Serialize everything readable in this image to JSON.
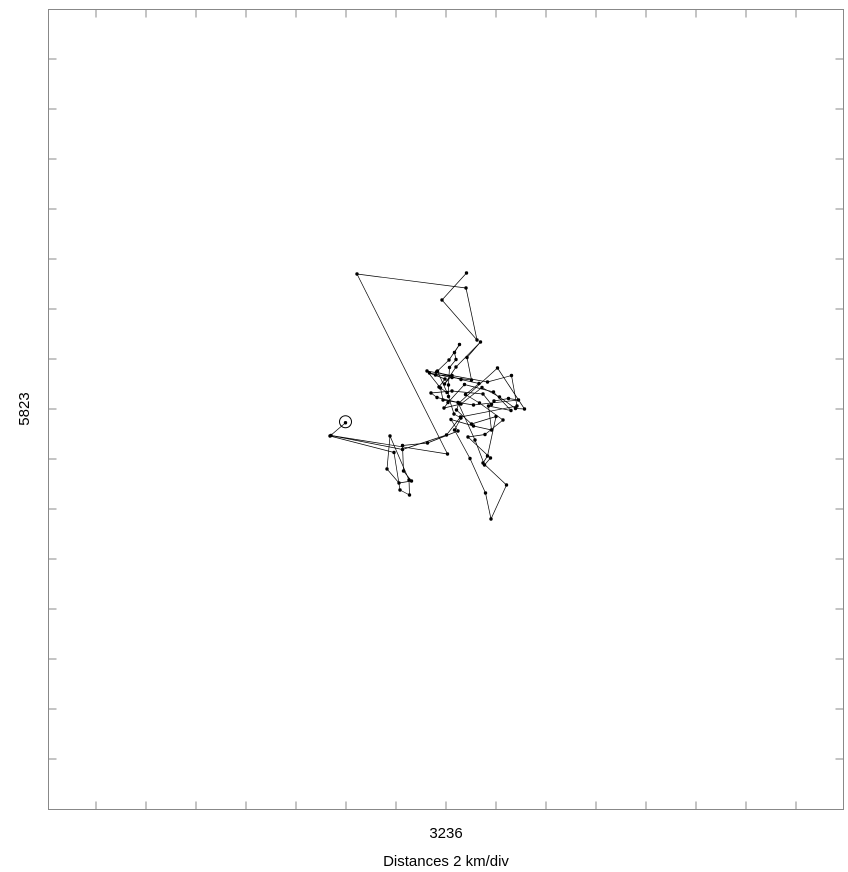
{
  "chart_data": {
    "type": "line",
    "x_center_label": "3236",
    "y_center_label": "5823",
    "xlabel": "Distances 2 km/div",
    "ylabel": "",
    "units": "km",
    "division_km": 2,
    "xlim": [
      -16,
      16
    ],
    "ylim": [
      -16,
      16
    ],
    "grid": false,
    "start_marker": "circle",
    "series": [
      {
        "values": [
          [
            -4.02,
            -0.55
          ],
          [
            -4.64,
            -1.08
          ],
          [
            -2.08,
            -1.74
          ],
          [
            -1.84,
            -3.24
          ],
          [
            -1.46,
            -3.44
          ],
          [
            -1.48,
            -2.84
          ],
          [
            -2.24,
            -1.08
          ],
          [
            -2.36,
            -2.4
          ],
          [
            -1.88,
            -2.96
          ],
          [
            -1.38,
            -2.88
          ],
          [
            -1.7,
            -2.48
          ],
          [
            -1.74,
            -1.46
          ],
          [
            -0.74,
            -1.36
          ],
          [
            0.48,
            -0.88
          ],
          [
            0.2,
            -0.42
          ],
          [
            1.1,
            -0.68
          ],
          [
            1.82,
            -0.84
          ],
          [
            1.7,
            0.12
          ],
          [
            2.6,
            -0.06
          ],
          [
            1.9,
            0.68
          ],
          [
            0.74,
            0.98
          ],
          [
            0.08,
            0.26
          ],
          [
            -0.08,
            0.04
          ],
          [
            0.6,
            0.2
          ],
          [
            1.44,
            0.86
          ],
          [
            2.14,
            0.48
          ],
          [
            2.78,
            0.02
          ],
          [
            3.14,
            0.0
          ],
          [
            2.06,
            1.64
          ],
          [
            0.52,
            0.24
          ],
          [
            0.42,
            -0.04
          ],
          [
            1.02,
            -0.6
          ],
          [
            2.0,
            -0.3
          ],
          [
            1.66,
            -1.88
          ],
          [
            1.48,
            -2.16
          ],
          [
            2.42,
            -3.04
          ],
          [
            1.8,
            -4.4
          ],
          [
            1.58,
            -3.36
          ],
          [
            0.96,
            -1.98
          ],
          [
            0.34,
            -0.84
          ],
          [
            0.6,
            -0.36
          ],
          [
            0.32,
            -0.2
          ],
          [
            0.1,
            0.5
          ],
          [
            0.1,
            0.96
          ],
          [
            0.14,
            1.66
          ],
          [
            0.4,
            1.98
          ],
          [
            0.34,
            2.26
          ],
          [
            0.54,
            2.58
          ],
          [
            0.12,
            1.96
          ],
          [
            -0.34,
            1.52
          ],
          [
            0.04,
            0.66
          ],
          [
            -0.28,
            0.88
          ],
          [
            -0.04,
            1.2
          ],
          [
            -0.66,
            1.44
          ],
          [
            0.24,
            1.26
          ],
          [
            1.02,
            1.16
          ],
          [
            0.84,
            2.06
          ],
          [
            1.38,
            2.68
          ],
          [
            0.4,
            1.68
          ],
          [
            -0.06,
            1.0
          ],
          [
            0.24,
            1.34
          ],
          [
            -0.42,
            1.36
          ],
          [
            -0.38,
            1.48
          ],
          [
            0.6,
            1.18
          ],
          [
            1.32,
            1.02
          ],
          [
            0.78,
            0.58
          ],
          [
            1.34,
            0.24
          ],
          [
            2.28,
            -0.44
          ],
          [
            1.56,
            -1.02
          ],
          [
            0.88,
            -1.12
          ],
          [
            1.78,
            -1.96
          ],
          [
            1.54,
            -2.24
          ],
          [
            1.16,
            -1.24
          ],
          [
            0.48,
            0.26
          ],
          [
            -0.36,
            0.46
          ],
          [
            -0.6,
            0.64
          ],
          [
            0.24,
            0.72
          ],
          [
            1.48,
            0.6
          ],
          [
            1.82,
            0.18
          ],
          [
            1.92,
            0.32
          ],
          [
            2.5,
            0.42
          ],
          [
            2.9,
            0.36
          ],
          [
            1.1,
            0.16
          ],
          [
            -0.12,
            0.36
          ],
          [
            -0.22,
            0.84
          ],
          [
            -0.76,
            1.52
          ],
          [
            1.66,
            1.08
          ],
          [
            2.62,
            1.34
          ],
          [
            2.84,
            0.12
          ],
          [
            0.58,
            -0.32
          ],
          [
            0.02,
            -1.04
          ],
          [
            -1.74,
            -1.62
          ],
          [
            -4.6,
            -1.06
          ],
          [
            0.06,
            -1.8
          ],
          [
            -3.56,
            5.4
          ],
          [
            0.8,
            4.84
          ],
          [
            1.24,
            2.76
          ],
          [
            -0.16,
            4.36
          ],
          [
            0.82,
            5.44
          ]
        ]
      }
    ]
  }
}
